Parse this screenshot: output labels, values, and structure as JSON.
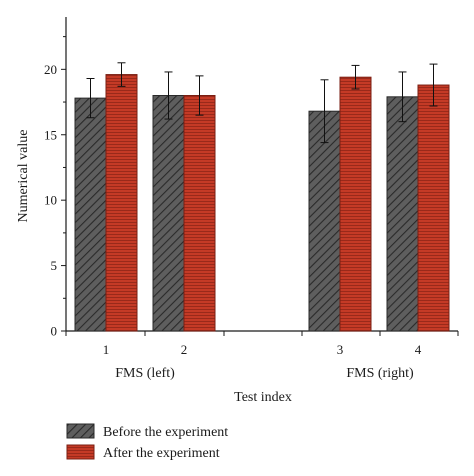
{
  "chart_data": {
    "type": "bar",
    "xlabel": "Test index",
    "ylabel": "Numerical value",
    "ylim": [
      0,
      24
    ],
    "yticks": [
      0,
      5,
      10,
      15,
      20
    ],
    "categories": [
      "1",
      "2",
      "3",
      "4"
    ],
    "groups": [
      {
        "label": "FMS (left)",
        "categories": [
          "1",
          "2"
        ]
      },
      {
        "label": "FMS (right)",
        "categories": [
          "3",
          "4"
        ]
      }
    ],
    "series": [
      {
        "name": "Before the experiment",
        "color": "#555555",
        "pattern": "diagonal-hatch",
        "values": [
          17.8,
          18.0,
          16.8,
          17.9
        ],
        "errors": [
          1.5,
          1.8,
          2.4,
          1.9
        ]
      },
      {
        "name": "After the experiment",
        "color": "#c0392b",
        "pattern": "horizontal-lines",
        "values": [
          19.6,
          18.0,
          19.4,
          18.8
        ],
        "errors": [
          0.9,
          1.5,
          0.9,
          1.6
        ]
      }
    ],
    "legend": "bottom-left",
    "grid": false
  }
}
